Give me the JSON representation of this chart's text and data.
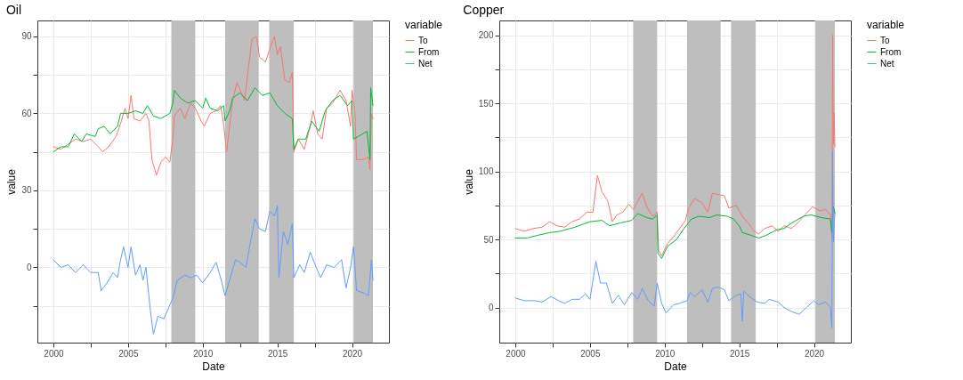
{
  "chart_data": [
    {
      "type": "line",
      "title": "Oil",
      "xlabel": "Date",
      "ylabel": "value",
      "legend_title": "variable",
      "legend": "right",
      "grid": true,
      "xlim": [
        1998.93,
        2022.47
      ],
      "xticks": [
        2000,
        {
          "value": 2002.5,
          "label": null
        },
        2005,
        {
          "value": 2007.5,
          "label": null
        },
        2010,
        {
          "value": 2012.5,
          "label": null
        },
        2015,
        {
          "value": 2017.5,
          "label": null
        },
        2020
      ],
      "ylim": [
        -29.3,
        96.2
      ],
      "yticks": [
        {
          "value": -15,
          "label": null
        },
        0,
        {
          "value": 15,
          "label": null
        },
        30,
        {
          "value": 45,
          "label": null
        },
        60,
        {
          "value": 75,
          "label": null
        },
        90
      ],
      "bands": [
        {
          "axis": "x",
          "from": 2007.9,
          "to": 2009.5,
          "color": "#bebebe"
        },
        {
          "axis": "x",
          "from": 2011.5,
          "to": 2013.75,
          "color": "#bebebe"
        },
        {
          "axis": "x",
          "from": 2014.45,
          "to": 2016.1,
          "color": "#bebebe"
        },
        {
          "axis": "x",
          "from": 2020.1,
          "to": 2021.4,
          "color": "#bebebe"
        }
      ],
      "series": [
        {
          "name": "To",
          "color": "#f8766d",
          "x": [
            2000,
            2000.5,
            2001,
            2001.5,
            2002,
            2002.5,
            2003,
            2003.3,
            2003.7,
            2004.2,
            2004.5,
            2004.8,
            2005,
            2005.2,
            2005.4,
            2005.8,
            2006.2,
            2006.4,
            2006.6,
            2006.9,
            2007.2,
            2007.5,
            2007.8,
            2008,
            2008.1,
            2008.5,
            2008.8,
            2009.2,
            2009.5,
            2009.9,
            2010.1,
            2010.5,
            2010.9,
            2011.2,
            2011.4,
            2011.6,
            2011.8,
            2012,
            2012.3,
            2012.8,
            2013,
            2013.3,
            2013.6,
            2013.8,
            2014.2,
            2014.6,
            2014.8,
            2015,
            2015.2,
            2015.5,
            2015.8,
            2016,
            2016.1,
            2016.4,
            2016.8,
            2017.2,
            2017.4,
            2017.7,
            2018,
            2018.3,
            2018.7,
            2019.2,
            2019.6,
            2019.9,
            2020,
            2020.2,
            2020.3,
            2020.7,
            2021.1,
            2021.2,
            2021.3,
            2021.4
          ],
          "values": [
            47,
            46,
            48,
            50,
            49,
            50,
            47,
            45,
            47,
            51,
            56,
            62,
            58,
            67,
            58,
            57,
            60,
            57,
            42,
            36,
            41,
            43,
            41,
            50,
            59,
            62,
            58,
            64,
            62,
            57,
            55,
            60,
            61,
            63,
            56,
            45,
            55,
            65,
            72,
            65,
            75,
            89,
            90,
            82,
            80,
            87,
            90,
            83,
            86,
            73,
            72,
            76,
            45,
            50,
            46,
            55,
            61,
            52,
            50,
            62,
            64,
            69,
            65,
            55,
            69,
            60,
            42,
            42,
            43,
            38,
            60,
            58
          ]
        },
        {
          "name": "From",
          "color": "#00ba38",
          "x": [
            2000,
            2000.5,
            2001,
            2001.4,
            2001.9,
            2002.2,
            2002.8,
            2003,
            2003.4,
            2003.8,
            2004.3,
            2004.5,
            2005,
            2005.5,
            2006,
            2006.3,
            2006.7,
            2007.2,
            2007.8,
            2008,
            2008.1,
            2008.5,
            2009,
            2009.5,
            2010,
            2010.2,
            2010.5,
            2011,
            2011.4,
            2011.5,
            2011.8,
            2012,
            2012.5,
            2013,
            2013.5,
            2014,
            2014.5,
            2015,
            2015.5,
            2016,
            2016.1,
            2016.4,
            2016.9,
            2017.3,
            2017.8,
            2018.2,
            2018.7,
            2019.2,
            2019.7,
            2020,
            2020.1,
            2020.4,
            2021,
            2021.2,
            2021.25,
            2021.4
          ],
          "values": [
            45,
            47,
            47,
            52,
            49,
            52,
            51,
            54,
            55,
            52,
            55,
            60,
            60,
            61,
            60,
            63,
            59,
            58,
            60,
            64,
            69,
            66,
            64,
            65,
            62,
            66,
            62,
            61,
            63,
            57,
            61,
            66,
            68,
            65,
            70,
            67,
            68,
            63,
            60,
            58,
            46,
            50,
            50,
            57,
            53,
            61,
            65,
            67,
            63,
            65,
            50,
            51,
            53,
            42,
            70,
            63
          ]
        },
        {
          "name": "Net",
          "color": "#619cff",
          "x": [
            2000,
            2000.5,
            2001,
            2001.5,
            2002,
            2002.5,
            2003,
            2003.2,
            2003.6,
            2004,
            2004.3,
            2004.5,
            2004.7,
            2005,
            2005.2,
            2005.5,
            2005.8,
            2006,
            2006.2,
            2006.5,
            2006.7,
            2007,
            2007.4,
            2007.7,
            2008,
            2008.3,
            2008.8,
            2009.2,
            2009.6,
            2010,
            2010.5,
            2010.9,
            2011.2,
            2011.5,
            2011.8,
            2012.2,
            2012.5,
            2012.9,
            2013.2,
            2013.5,
            2013.8,
            2014.2,
            2014.5,
            2014.8,
            2015,
            2015.1,
            2015.4,
            2015.7,
            2016,
            2016.1,
            2016.5,
            2016.8,
            2017.2,
            2017.6,
            2017.9,
            2018.3,
            2018.8,
            2019.3,
            2019.6,
            2019.9,
            2020.1,
            2020.3,
            2020.8,
            2021.1,
            2021.3,
            2021.4
          ],
          "values": [
            3,
            0,
            1,
            -2,
            1,
            -2,
            -2,
            -9,
            -6,
            -2,
            -4,
            3,
            8,
            0,
            8,
            -3,
            1,
            -5,
            0,
            -17,
            -26,
            -19,
            -20,
            -16,
            -12,
            -5,
            -3,
            -4,
            -3,
            -6,
            -2,
            2,
            -4,
            -11,
            -5,
            3,
            2,
            0,
            10,
            19,
            15,
            14,
            22,
            20,
            24,
            -4,
            14,
            9,
            17,
            -4,
            1,
            -2,
            6,
            0,
            -4,
            1,
            0,
            3,
            -8,
            0,
            8,
            -9,
            -10,
            -11,
            3,
            -5
          ]
        }
      ]
    },
    {
      "type": "line",
      "title": "Copper",
      "xlabel": "Date",
      "ylabel": "value",
      "legend_title": "variable",
      "legend": "right",
      "grid": true,
      "xlim": [
        1998.93,
        2022.47
      ],
      "xticks": [
        2000,
        {
          "value": 2002.5,
          "label": null
        },
        2005,
        {
          "value": 2007.5,
          "label": null
        },
        2010,
        {
          "value": 2012.5,
          "label": null
        },
        2015,
        {
          "value": 2017.5,
          "label": null
        },
        2020
      ],
      "ylim": [
        -25.8,
        210.8
      ],
      "yticks": [
        0,
        {
          "value": 25,
          "label": null
        },
        50,
        {
          "value": 75,
          "label": null
        },
        100,
        {
          "value": 125,
          "label": null
        },
        150,
        {
          "value": 175,
          "label": null
        },
        200
      ],
      "bands": [
        {
          "axis": "x",
          "from": 2007.9,
          "to": 2009.5,
          "color": "#bebebe"
        },
        {
          "axis": "x",
          "from": 2011.5,
          "to": 2013.75,
          "color": "#bebebe"
        },
        {
          "axis": "x",
          "from": 2014.45,
          "to": 2016.1,
          "color": "#bebebe"
        },
        {
          "axis": "x",
          "from": 2020.1,
          "to": 2021.4,
          "color": "#bebebe"
        }
      ],
      "series": [
        {
          "name": "To",
          "color": "#f8766d",
          "x": [
            2000,
            2000.6,
            2001.2,
            2001.8,
            2002.3,
            2002.8,
            2003.3,
            2003.8,
            2004.3,
            2004.8,
            2005.2,
            2005.5,
            2005.8,
            2006.2,
            2006.5,
            2006.8,
            2007.2,
            2007.6,
            2007.9,
            2008.3,
            2008.5,
            2008.8,
            2009.2,
            2009.5,
            2009.6,
            2009.8,
            2010.2,
            2010.6,
            2011,
            2011.4,
            2011.6,
            2012,
            2012.5,
            2012.9,
            2013.2,
            2013.6,
            2014,
            2014.3,
            2014.8,
            2015.2,
            2015.6,
            2016,
            2016.3,
            2016.7,
            2017.2,
            2017.6,
            2018,
            2018.5,
            2018.9,
            2019.4,
            2019.9,
            2020.4,
            2020.8,
            2021.1,
            2021.2,
            2021.25,
            2021.3,
            2021.35,
            2021.4
          ],
          "values": [
            58,
            56,
            58,
            59,
            63,
            60,
            59,
            63,
            65,
            70,
            70,
            97,
            85,
            78,
            63,
            68,
            70,
            76,
            72,
            80,
            84,
            74,
            67,
            70,
            42,
            38,
            47,
            52,
            58,
            64,
            73,
            80,
            77,
            70,
            84,
            83,
            82,
            73,
            75,
            67,
            62,
            56,
            54,
            58,
            60,
            56,
            60,
            58,
            62,
            68,
            74,
            71,
            72,
            68,
            50,
            200,
            120,
            143,
            118
          ]
        },
        {
          "name": "From",
          "color": "#00ba38",
          "x": [
            2000,
            2000.8,
            2001.5,
            2002.3,
            2003,
            2004,
            2005,
            2005.8,
            2006.3,
            2007,
            2007.8,
            2008.2,
            2008.8,
            2009.2,
            2009.5,
            2009.55,
            2009.8,
            2010.2,
            2010.8,
            2011.3,
            2011.8,
            2012.3,
            2013,
            2013.5,
            2014.2,
            2014.6,
            2015,
            2015.2,
            2015.8,
            2016.3,
            2016.8,
            2017.5,
            2018,
            2018.5,
            2019.3,
            2019.8,
            2020.5,
            2021.1,
            2021.2,
            2021.3,
            2021.4
          ],
          "values": [
            51,
            51,
            53,
            55,
            56,
            59,
            63,
            64,
            60,
            62,
            64,
            69,
            66,
            65,
            68,
            40,
            36,
            45,
            50,
            58,
            65,
            67,
            66,
            68,
            67,
            65,
            60,
            55,
            53,
            51,
            53,
            57,
            58,
            62,
            67,
            68,
            66,
            65,
            55,
            74,
            69
          ]
        },
        {
          "name": "Net",
          "color": "#619cff",
          "x": [
            2000,
            2000.6,
            2001.3,
            2001.8,
            2002.4,
            2002.9,
            2003.3,
            2003.8,
            2004.3,
            2004.7,
            2005,
            2005.4,
            2005.7,
            2006.1,
            2006.5,
            2006.9,
            2007.3,
            2007.8,
            2008.2,
            2008.5,
            2008.9,
            2009.3,
            2009.5,
            2009.8,
            2010.1,
            2010.6,
            2011,
            2011.5,
            2011.7,
            2012,
            2012.5,
            2012.9,
            2013.2,
            2013.6,
            2014,
            2014.3,
            2014.8,
            2015.1,
            2015.2,
            2015.3,
            2015.8,
            2016.2,
            2016.7,
            2017,
            2017.6,
            2018,
            2018.5,
            2019,
            2019.5,
            2020,
            2020.3,
            2020.8,
            2021.1,
            2021.2,
            2021.25,
            2021.3,
            2021.4
          ],
          "values": [
            7,
            5,
            5,
            4,
            8,
            5,
            3,
            6,
            6,
            10,
            6,
            34,
            18,
            18,
            3,
            9,
            2,
            11,
            6,
            14,
            5,
            1,
            18,
            3,
            -4,
            2,
            3,
            5,
            11,
            8,
            13,
            4,
            14,
            15,
            13,
            5,
            9,
            10,
            -10,
            12,
            7,
            4,
            3,
            6,
            4,
            0,
            -3,
            -5,
            0,
            5,
            2,
            4,
            0,
            -15,
            115,
            48,
            70
          ]
        }
      ]
    }
  ]
}
